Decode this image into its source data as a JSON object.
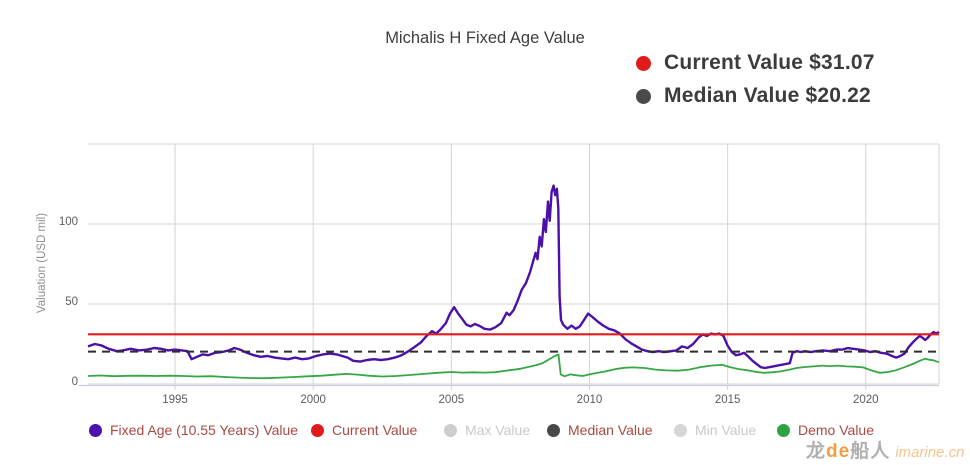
{
  "title": "Michalis H Fixed Age Value",
  "info_panel": {
    "rows": [
      {
        "label": "Current Value $31.07",
        "dot_color": "#e01b1b"
      },
      {
        "label": "Median Value $20.22",
        "dot_color": "#4a4a4a"
      }
    ]
  },
  "y_axis": {
    "title": "Valuation (USD mil)"
  },
  "legend": {
    "items": [
      {
        "label": "Fixed Age (10.55 Years) Value",
        "dot_color": "#4b13ae",
        "text_color": "#a84a42",
        "enabled": true
      },
      {
        "label": "Current Value",
        "dot_color": "#e01b1b",
        "text_color": "#a84a42",
        "enabled": true
      },
      {
        "label": "Max Value",
        "dot_color": "#cdcdcd",
        "text_color": "#c9c9c9",
        "enabled": false
      },
      {
        "label": "Median Value",
        "dot_color": "#484848",
        "text_color": "#a84a42",
        "enabled": true
      },
      {
        "label": "Min Value",
        "dot_color": "#d6d6d6",
        "text_color": "#c9c9c9",
        "enabled": false
      },
      {
        "label": "Demo Value",
        "dot_color": "#2ea344",
        "text_color": "#a84a42",
        "enabled": true
      }
    ]
  },
  "watermark": {
    "part1": "龙",
    "part2": "de",
    "part3": "船人",
    "site": "imarine.cn"
  },
  "chart_data": {
    "type": "line",
    "title": "Michalis H Fixed Age Value",
    "xlabel": "",
    "ylabel": "Valuation (USD mil)",
    "x_range": [
      1991.85,
      2022.65
    ],
    "y_range": [
      0,
      150
    ],
    "y_gridlines": [
      0,
      50,
      100,
      150
    ],
    "y_ticks": [
      0,
      50,
      100
    ],
    "x_ticks": [
      1995,
      2000,
      2005,
      2010,
      2015,
      2020
    ],
    "grid": true,
    "legend_position": "bottom",
    "annotations": [
      {
        "text": "Current Value $31.07",
        "value": 31.07
      },
      {
        "text": "Median Value $20.22",
        "value": 20.22
      }
    ],
    "series": [
      {
        "name": "Demo Value",
        "color": "#35a845",
        "points": [
          [
            1991.85,
            5
          ],
          [
            1992.3,
            5.3
          ],
          [
            1992.8,
            4.9
          ],
          [
            1993.3,
            5.1
          ],
          [
            1993.8,
            5.2
          ],
          [
            1994.3,
            5
          ],
          [
            1994.8,
            5.2
          ],
          [
            1995.3,
            5
          ],
          [
            1995.8,
            4.7
          ],
          [
            1996.3,
            4.9
          ],
          [
            1996.8,
            4.4
          ],
          [
            1997.3,
            4
          ],
          [
            1997.8,
            3.7
          ],
          [
            1998.3,
            3.6
          ],
          [
            1998.8,
            4
          ],
          [
            1999.3,
            4.4
          ],
          [
            1999.8,
            4.8
          ],
          [
            2000.3,
            5.2
          ],
          [
            2000.8,
            5.8
          ],
          [
            2001.2,
            6.3
          ],
          [
            2001.6,
            5.9
          ],
          [
            2002,
            5.2
          ],
          [
            2002.5,
            4.7
          ],
          [
            2003,
            5
          ],
          [
            2003.5,
            5.6
          ],
          [
            2004,
            6.3
          ],
          [
            2004.5,
            7
          ],
          [
            2005,
            7.5
          ],
          [
            2005.4,
            7.1
          ],
          [
            2005.8,
            7.3
          ],
          [
            2006.2,
            7.1
          ],
          [
            2006.6,
            7.4
          ],
          [
            2007,
            8.4
          ],
          [
            2007.5,
            9.5
          ],
          [
            2008,
            11.5
          ],
          [
            2008.3,
            13
          ],
          [
            2008.55,
            15.5
          ],
          [
            2008.75,
            17.5
          ],
          [
            2008.88,
            18.5
          ],
          [
            2008.96,
            6
          ],
          [
            2009.1,
            4.8
          ],
          [
            2009.3,
            6
          ],
          [
            2009.5,
            5.5
          ],
          [
            2009.75,
            5
          ],
          [
            2010,
            6
          ],
          [
            2010.3,
            7
          ],
          [
            2010.6,
            8
          ],
          [
            2011,
            9.5
          ],
          [
            2011.3,
            10.2
          ],
          [
            2011.6,
            10.4
          ],
          [
            2012,
            10
          ],
          [
            2012.4,
            9
          ],
          [
            2012.8,
            8.5
          ],
          [
            2013.2,
            8.3
          ],
          [
            2013.6,
            9
          ],
          [
            2014,
            10.5
          ],
          [
            2014.4,
            11.5
          ],
          [
            2014.8,
            12
          ],
          [
            2015.1,
            10.5
          ],
          [
            2015.4,
            9.3
          ],
          [
            2015.7,
            8.6
          ],
          [
            2016,
            7.6
          ],
          [
            2016.3,
            7
          ],
          [
            2016.6,
            7.3
          ],
          [
            2016.9,
            7.8
          ],
          [
            2017.2,
            8.8
          ],
          [
            2017.5,
            10
          ],
          [
            2017.8,
            10.6
          ],
          [
            2018.1,
            11
          ],
          [
            2018.4,
            11.5
          ],
          [
            2018.7,
            11.2
          ],
          [
            2019,
            11.5
          ],
          [
            2019.3,
            11
          ],
          [
            2019.6,
            10.8
          ],
          [
            2019.9,
            10.4
          ],
          [
            2020.2,
            8.5
          ],
          [
            2020.5,
            7
          ],
          [
            2020.8,
            7.5
          ],
          [
            2021.1,
            8.6
          ],
          [
            2021.4,
            10.5
          ],
          [
            2021.7,
            12.5
          ],
          [
            2021.95,
            14.5
          ],
          [
            2022.15,
            15.8
          ],
          [
            2022.3,
            15.2
          ],
          [
            2022.45,
            14.8
          ],
          [
            2022.55,
            14.2
          ],
          [
            2022.65,
            13.6
          ]
        ]
      },
      {
        "name": "Fixed Age (10.55 Years) Value",
        "color": "#4c10a9",
        "points": [
          [
            1991.85,
            23.5
          ],
          [
            1992.1,
            25
          ],
          [
            1992.35,
            24
          ],
          [
            1992.6,
            22
          ],
          [
            1992.9,
            20.5
          ],
          [
            1993.1,
            21
          ],
          [
            1993.4,
            22
          ],
          [
            1993.7,
            21
          ],
          [
            1994,
            21.5
          ],
          [
            1994.25,
            22.5
          ],
          [
            1994.5,
            22
          ],
          [
            1994.75,
            21
          ],
          [
            1995,
            21.5
          ],
          [
            1995.25,
            21
          ],
          [
            1995.45,
            20.5
          ],
          [
            1995.6,
            15.5
          ],
          [
            1995.8,
            17
          ],
          [
            1996,
            18.5
          ],
          [
            1996.2,
            18
          ],
          [
            1996.45,
            19.5
          ],
          [
            1996.7,
            20
          ],
          [
            1996.95,
            21
          ],
          [
            1997.15,
            22.5
          ],
          [
            1997.35,
            21.5
          ],
          [
            1997.6,
            19.5
          ],
          [
            1997.85,
            18
          ],
          [
            1998.1,
            17
          ],
          [
            1998.35,
            17.5
          ],
          [
            1998.6,
            16.5
          ],
          [
            1998.85,
            16
          ],
          [
            1999.1,
            15.5
          ],
          [
            1999.35,
            16.5
          ],
          [
            1999.6,
            15.5
          ],
          [
            1999.85,
            16
          ],
          [
            2000.1,
            17.5
          ],
          [
            2000.35,
            18.5
          ],
          [
            2000.6,
            19
          ],
          [
            2000.85,
            18.5
          ],
          [
            2001.05,
            17.5
          ],
          [
            2001.25,
            16.5
          ],
          [
            2001.45,
            14.5
          ],
          [
            2001.7,
            14
          ],
          [
            2001.95,
            15
          ],
          [
            2002.2,
            15.5
          ],
          [
            2002.45,
            15
          ],
          [
            2002.7,
            15.5
          ],
          [
            2002.95,
            16.5
          ],
          [
            2003.2,
            18
          ],
          [
            2003.45,
            20.5
          ],
          [
            2003.7,
            23.5
          ],
          [
            2003.9,
            26
          ],
          [
            2004.1,
            30
          ],
          [
            2004.3,
            33
          ],
          [
            2004.45,
            31.5
          ],
          [
            2004.6,
            34
          ],
          [
            2004.8,
            38
          ],
          [
            2004.95,
            44
          ],
          [
            2005.1,
            48
          ],
          [
            2005.25,
            44
          ],
          [
            2005.4,
            40.5
          ],
          [
            2005.55,
            37
          ],
          [
            2005.7,
            36
          ],
          [
            2005.85,
            37.5
          ],
          [
            2006,
            36.5
          ],
          [
            2006.2,
            34.5
          ],
          [
            2006.4,
            34
          ],
          [
            2006.6,
            35.5
          ],
          [
            2006.8,
            38
          ],
          [
            2007,
            44.5
          ],
          [
            2007.1,
            43
          ],
          [
            2007.25,
            46
          ],
          [
            2007.4,
            52
          ],
          [
            2007.55,
            59
          ],
          [
            2007.7,
            63
          ],
          [
            2007.85,
            70
          ],
          [
            2007.95,
            76
          ],
          [
            2008.05,
            82
          ],
          [
            2008.12,
            78
          ],
          [
            2008.2,
            92
          ],
          [
            2008.27,
            86
          ],
          [
            2008.35,
            103
          ],
          [
            2008.42,
            95
          ],
          [
            2008.5,
            114
          ],
          [
            2008.56,
            102
          ],
          [
            2008.63,
            120
          ],
          [
            2008.7,
            124
          ],
          [
            2008.76,
            118
          ],
          [
            2008.82,
            122
          ],
          [
            2008.87,
            110
          ],
          [
            2008.92,
            55
          ],
          [
            2008.97,
            40
          ],
          [
            2009.05,
            37
          ],
          [
            2009.2,
            34.5
          ],
          [
            2009.35,
            36.5
          ],
          [
            2009.5,
            34.5
          ],
          [
            2009.65,
            36
          ],
          [
            2009.8,
            40
          ],
          [
            2009.95,
            44
          ],
          [
            2010.1,
            42
          ],
          [
            2010.3,
            39
          ],
          [
            2010.5,
            36.5
          ],
          [
            2010.7,
            34.5
          ],
          [
            2010.9,
            33.5
          ],
          [
            2011.1,
            31.5
          ],
          [
            2011.3,
            28
          ],
          [
            2011.5,
            25.5
          ],
          [
            2011.7,
            23.5
          ],
          [
            2011.9,
            21.5
          ],
          [
            2012.1,
            20.5
          ],
          [
            2012.3,
            20
          ],
          [
            2012.5,
            20.5
          ],
          [
            2012.7,
            20
          ],
          [
            2012.95,
            20.5
          ],
          [
            2013.15,
            21
          ],
          [
            2013.35,
            23.5
          ],
          [
            2013.55,
            22.5
          ],
          [
            2013.75,
            25
          ],
          [
            2013.95,
            29
          ],
          [
            2014.1,
            31
          ],
          [
            2014.25,
            30
          ],
          [
            2014.4,
            31.5
          ],
          [
            2014.55,
            31
          ],
          [
            2014.7,
            31.5
          ],
          [
            2014.85,
            30
          ],
          [
            2015,
            24
          ],
          [
            2015.15,
            20
          ],
          [
            2015.3,
            18
          ],
          [
            2015.45,
            18.5
          ],
          [
            2015.6,
            19.5
          ],
          [
            2015.75,
            17
          ],
          [
            2015.9,
            14.5
          ],
          [
            2016.05,
            12.5
          ],
          [
            2016.2,
            10.5
          ],
          [
            2016.35,
            10
          ],
          [
            2016.5,
            10.5
          ],
          [
            2016.65,
            11
          ],
          [
            2016.8,
            11.5
          ],
          [
            2016.95,
            12
          ],
          [
            2017.1,
            12.5
          ],
          [
            2017.25,
            13
          ],
          [
            2017.35,
            19.5
          ],
          [
            2017.5,
            20.5
          ],
          [
            2017.65,
            20
          ],
          [
            2017.8,
            20.5
          ],
          [
            2018,
            20
          ],
          [
            2018.2,
            20.5
          ],
          [
            2018.45,
            21
          ],
          [
            2018.7,
            20.5
          ],
          [
            2018.95,
            21.5
          ],
          [
            2019.15,
            21.5
          ],
          [
            2019.35,
            22.5
          ],
          [
            2019.55,
            22
          ],
          [
            2019.75,
            21.5
          ],
          [
            2019.95,
            21
          ],
          [
            2020.15,
            20
          ],
          [
            2020.35,
            20.5
          ],
          [
            2020.55,
            19.5
          ],
          [
            2020.75,
            19
          ],
          [
            2020.95,
            17.5
          ],
          [
            2021.1,
            16.5
          ],
          [
            2021.25,
            17.5
          ],
          [
            2021.4,
            19
          ],
          [
            2021.55,
            23
          ],
          [
            2021.7,
            26
          ],
          [
            2021.85,
            28.5
          ],
          [
            2021.95,
            30
          ],
          [
            2022.05,
            29
          ],
          [
            2022.15,
            27.5
          ],
          [
            2022.25,
            29
          ],
          [
            2022.35,
            31
          ],
          [
            2022.45,
            32.5
          ],
          [
            2022.55,
            31.5
          ],
          [
            2022.65,
            32.5
          ]
        ]
      },
      {
        "name": "Current Value",
        "color": "#e01b1b",
        "constant": 31.07
      },
      {
        "name": "Median Value",
        "color": "#2d2d2d",
        "constant": 20.22,
        "dash": true
      }
    ]
  }
}
